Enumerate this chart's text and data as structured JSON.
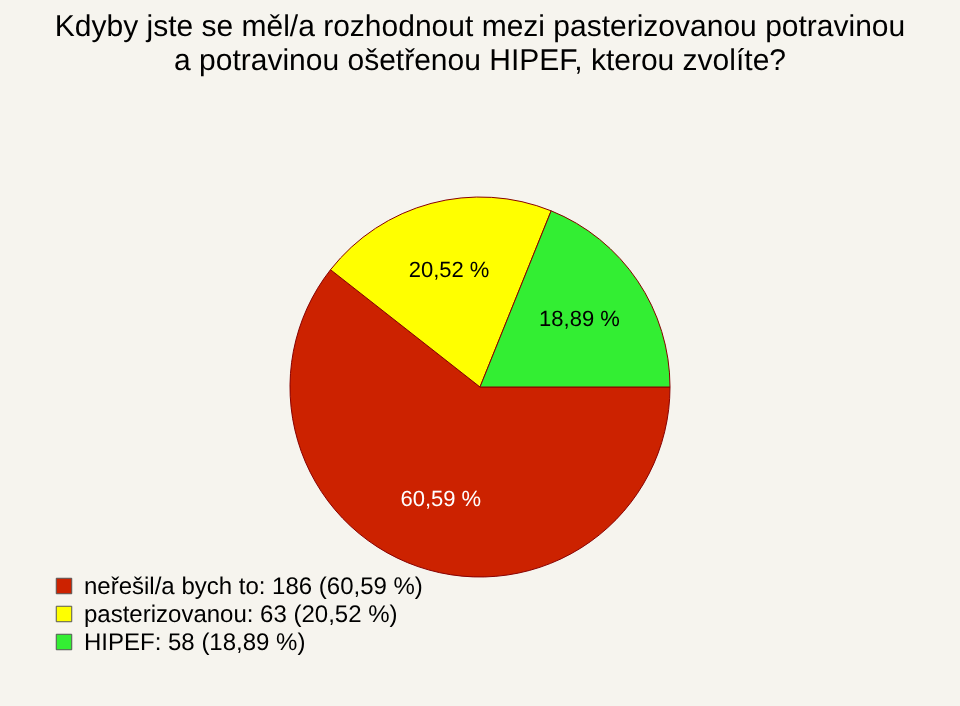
{
  "chart_data": {
    "type": "pie",
    "title": "Kdyby jste se měl/a rozhodnout mezi pasterizovanou potravinou a potravinou ošetřenou HIPEF, kterou zvolíte?",
    "categories": [
      "neřešil/a bych to: 186 (60,59 %)",
      "pasterizovanou: 63 (20,52 %)",
      "HIPEF: 58 (18,89 %)"
    ],
    "values": [
      60.59,
      20.52,
      18.89
    ],
    "value_labels": [
      "60,59 %",
      "20,52 %",
      "18,89 %"
    ],
    "colors": [
      "#cc2200",
      "#ffff00",
      "#33ee33"
    ],
    "legend": "bottom left"
  }
}
